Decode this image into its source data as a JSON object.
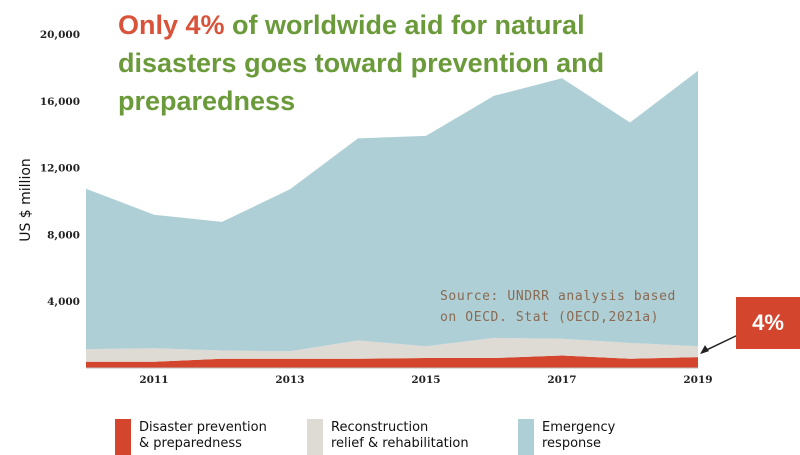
{
  "title": {
    "highlight": "Only 4%",
    "rest": " of worldwide aid for natural disasters goes toward prevention and preparedness"
  },
  "source_note": {
    "line1": "Source: UNDRR analysis based",
    "line2": "on OECD. Stat (OECD,2021a)"
  },
  "callout": {
    "label": "4%"
  },
  "colors": {
    "title": "#6a9a3a",
    "highlight": "#d9533a",
    "prevention": "#d4452e",
    "reconstruction": "#dedad4",
    "emergency": "#aecfd6",
    "callout": "#d4452e"
  },
  "chart_data": {
    "type": "area",
    "stacked": true,
    "ylabel": "US $ million",
    "xlabel": "",
    "ylim": [
      0,
      20000
    ],
    "yticks": [
      4000,
      8000,
      12000,
      16000,
      20000
    ],
    "ytick_labels": [
      "4,000",
      "8,000",
      "12,000",
      "16,000",
      "20,000"
    ],
    "x": [
      2010,
      2011,
      2012,
      2013,
      2014,
      2015,
      2016,
      2017,
      2018,
      2019
    ],
    "xlim": [
      2010,
      2019
    ],
    "xticks": [
      2011,
      2013,
      2015,
      2017,
      2019
    ],
    "xtick_labels": [
      "2011",
      "2013",
      "2015",
      "2017",
      "2019"
    ],
    "series": [
      {
        "name": "Disaster prevention & preparedness",
        "legend_lines": [
          "Disaster prevention",
          "& preparedness"
        ],
        "color": "#d4452e",
        "values": [
          380,
          380,
          550,
          550,
          550,
          600,
          600,
          750,
          550,
          650
        ]
      },
      {
        "name": "Reconstruction relief & rehabilitation",
        "legend_lines": [
          "Reconstruction",
          "relief & rehabilitation"
        ],
        "color": "#dedad4",
        "values": [
          750,
          800,
          500,
          450,
          1100,
          700,
          1200,
          1000,
          950,
          650
        ]
      },
      {
        "name": "Emergency response",
        "legend_lines": [
          "Emergency",
          "response"
        ],
        "color": "#aecfd6",
        "values": [
          9600,
          8000,
          7700,
          9700,
          12100,
          12600,
          14500,
          15600,
          13200,
          16500
        ]
      }
    ],
    "legend_position": "bottom"
  }
}
